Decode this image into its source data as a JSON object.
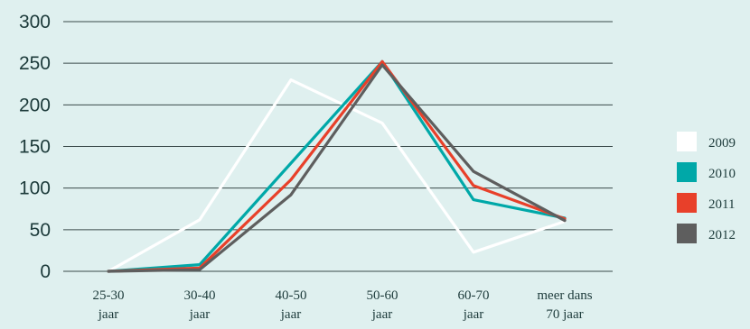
{
  "chart_data": {
    "type": "line",
    "title": "",
    "xlabel": "",
    "ylabel": "",
    "categories": [
      [
        "25-30",
        "jaar"
      ],
      [
        "30-40",
        "jaar"
      ],
      [
        "40-50",
        "jaar"
      ],
      [
        "50-60",
        "jaar"
      ],
      [
        "60-70",
        "jaar"
      ],
      [
        "meer dans",
        "70 jaar"
      ]
    ],
    "ylim": [
      0,
      300
    ],
    "yticks": [
      0,
      50,
      100,
      150,
      200,
      250,
      300
    ],
    "grid": true,
    "legend_position": "right",
    "series": [
      {
        "name": "2009",
        "color": "#ffffff",
        "values": [
          0,
          62,
          230,
          178,
          23,
          60
        ]
      },
      {
        "name": "2010",
        "color": "#00a8a8",
        "values": [
          0,
          8,
          130,
          252,
          86,
          64
        ]
      },
      {
        "name": "2011",
        "color": "#e8402a",
        "values": [
          0,
          4,
          110,
          252,
          103,
          63
        ]
      },
      {
        "name": "2012",
        "color": "#5e5e5e",
        "values": [
          0,
          2,
          92,
          248,
          120,
          61
        ]
      }
    ]
  }
}
